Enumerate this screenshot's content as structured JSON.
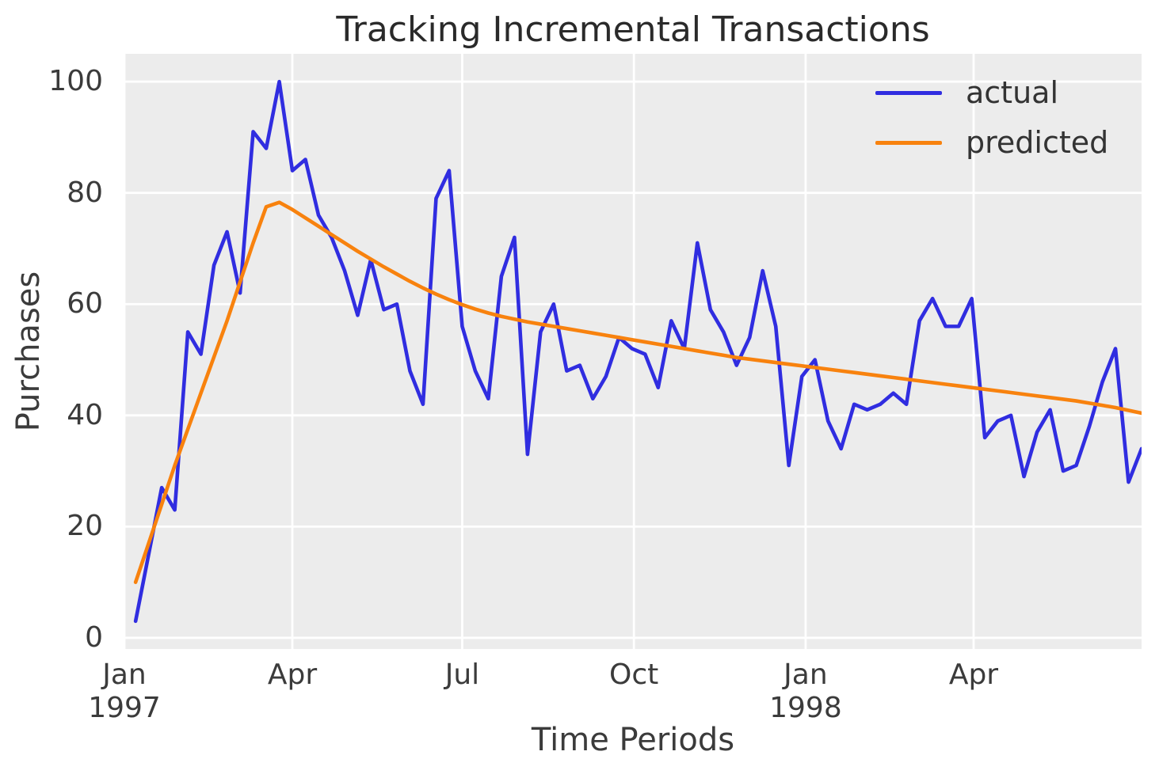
{
  "title": "Tracking Incremental Transactions",
  "axes": {
    "x_label": "Time Periods",
    "y_label": "Purchases"
  },
  "legend": {
    "position": "upper right",
    "items": [
      {
        "label": "actual",
        "color": "#302de0"
      },
      {
        "label": "predicted",
        "color": "#f8820e"
      }
    ]
  },
  "colors": {
    "plot_background": "#ececec",
    "grid": "#ffffff",
    "actual": "#302de0",
    "predicted": "#f8820e",
    "tick_text": "#3b3b3b",
    "title_text": "#2a2a2a"
  },
  "chart_data": {
    "type": "line",
    "title": "Tracking Incremental Transactions",
    "xlabel": "Time Periods",
    "ylabel": "Purchases",
    "x_unit": "weekly periods from Jan 1997 to late Jun 1998",
    "x_start_day": 6,
    "x_step_days": 7,
    "xlim_days": [
      0,
      545
    ],
    "ylim": [
      -2,
      105
    ],
    "grid": true,
    "y_ticks": [
      0,
      20,
      40,
      60,
      80,
      100
    ],
    "x_ticks": [
      {
        "label": "Jan",
        "sublabel": "1997",
        "day": 0
      },
      {
        "label": "Apr",
        "sublabel": "",
        "day": 90
      },
      {
        "label": "Jul",
        "sublabel": "",
        "day": 181
      },
      {
        "label": "Oct",
        "sublabel": "",
        "day": 273
      },
      {
        "label": "Jan",
        "sublabel": "1998",
        "day": 365
      },
      {
        "label": "Apr",
        "sublabel": "",
        "day": 455
      }
    ],
    "series": [
      {
        "name": "actual",
        "color": "#302de0",
        "line_width": 4.6,
        "values": [
          3,
          15,
          27,
          23,
          55,
          51,
          67,
          73,
          62,
          91,
          88,
          100,
          84,
          86,
          76,
          72,
          66,
          58,
          68,
          59,
          60,
          48,
          42,
          79,
          84,
          56,
          48,
          43,
          65,
          72,
          33,
          55,
          60,
          48,
          49,
          43,
          47,
          54,
          52,
          51,
          45,
          57,
          52,
          71,
          59,
          55,
          49,
          54,
          66,
          56,
          31,
          47,
          50,
          39,
          34,
          42,
          41,
          42,
          44,
          42,
          57,
          61,
          56,
          56,
          61,
          36,
          39,
          40,
          29,
          37,
          41,
          30,
          31,
          38,
          46,
          52,
          28,
          34
        ]
      },
      {
        "name": "predicted",
        "color": "#f8820e",
        "line_width": 4.6,
        "values": [
          10,
          17,
          24,
          31,
          37.5,
          44,
          50.5,
          57,
          64,
          71,
          77.5,
          78.3,
          77.0,
          75.5,
          74.0,
          72.5,
          71.0,
          69.5,
          68.1,
          66.7,
          65.4,
          64.1,
          62.9,
          61.8,
          60.8,
          59.9,
          59.1,
          58.4,
          57.8,
          57.3,
          56.8,
          56.4,
          56.0,
          55.6,
          55.2,
          54.8,
          54.4,
          54.0,
          53.6,
          53.2,
          52.8,
          52.4,
          52.0,
          51.6,
          51.2,
          50.8,
          50.4,
          50.1,
          49.8,
          49.5,
          49.2,
          48.9,
          48.6,
          48.3,
          48.0,
          47.7,
          47.4,
          47.1,
          46.8,
          46.5,
          46.2,
          45.9,
          45.6,
          45.3,
          45.0,
          44.7,
          44.4,
          44.1,
          43.8,
          43.5,
          43.2,
          42.9,
          42.6,
          42.2,
          41.8,
          41.4,
          40.9,
          40.4
        ]
      }
    ]
  }
}
